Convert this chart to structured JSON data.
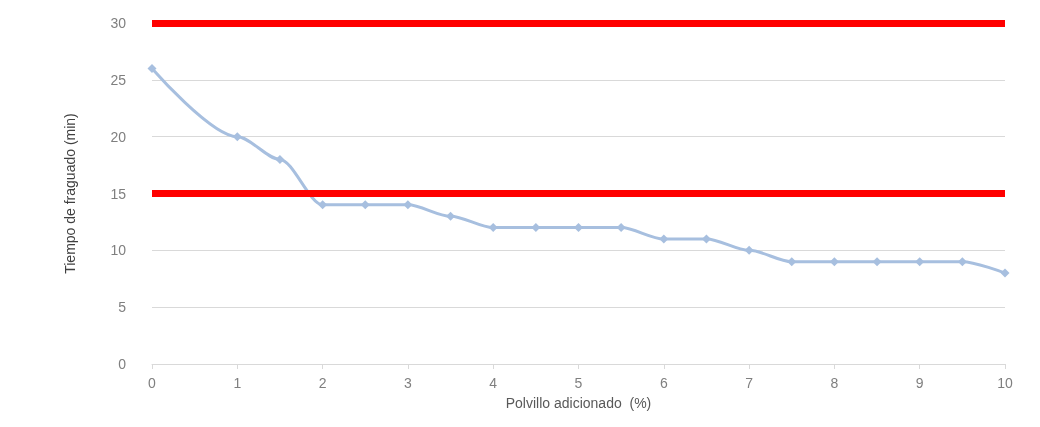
{
  "chart_data": {
    "type": "line",
    "xlabel": "Polvillo adicionado  (%)",
    "ylabel": "Tiempo de fraguado (min)",
    "x": [
      0,
      1,
      1.5,
      2,
      2.5,
      3,
      3.5,
      4,
      4.5,
      5,
      5.5,
      6,
      6.5,
      7,
      7.5,
      8,
      8.5,
      9,
      9.5,
      10
    ],
    "series": [
      {
        "color": "#a7bfdf",
        "values": [
          26,
          20,
          18,
          14,
          14,
          14,
          13,
          12,
          12,
          12,
          12,
          11,
          11,
          10,
          9,
          9,
          9,
          9,
          9,
          8
        ]
      }
    ],
    "xlim": [
      0,
      10
    ],
    "xticks": [
      0,
      1,
      2,
      3,
      4,
      5,
      6,
      7,
      8,
      9,
      10
    ],
    "ylim": [
      0,
      30
    ],
    "yticks": [
      0,
      5,
      10,
      15,
      20,
      25,
      30
    ],
    "ref_lines": [
      {
        "axis": "y",
        "value": 30,
        "color": "#ff0000"
      },
      {
        "axis": "y",
        "value": 15,
        "color": "#ff0000"
      }
    ],
    "grid": "y",
    "marker": "diamond",
    "line_style": "solid"
  }
}
